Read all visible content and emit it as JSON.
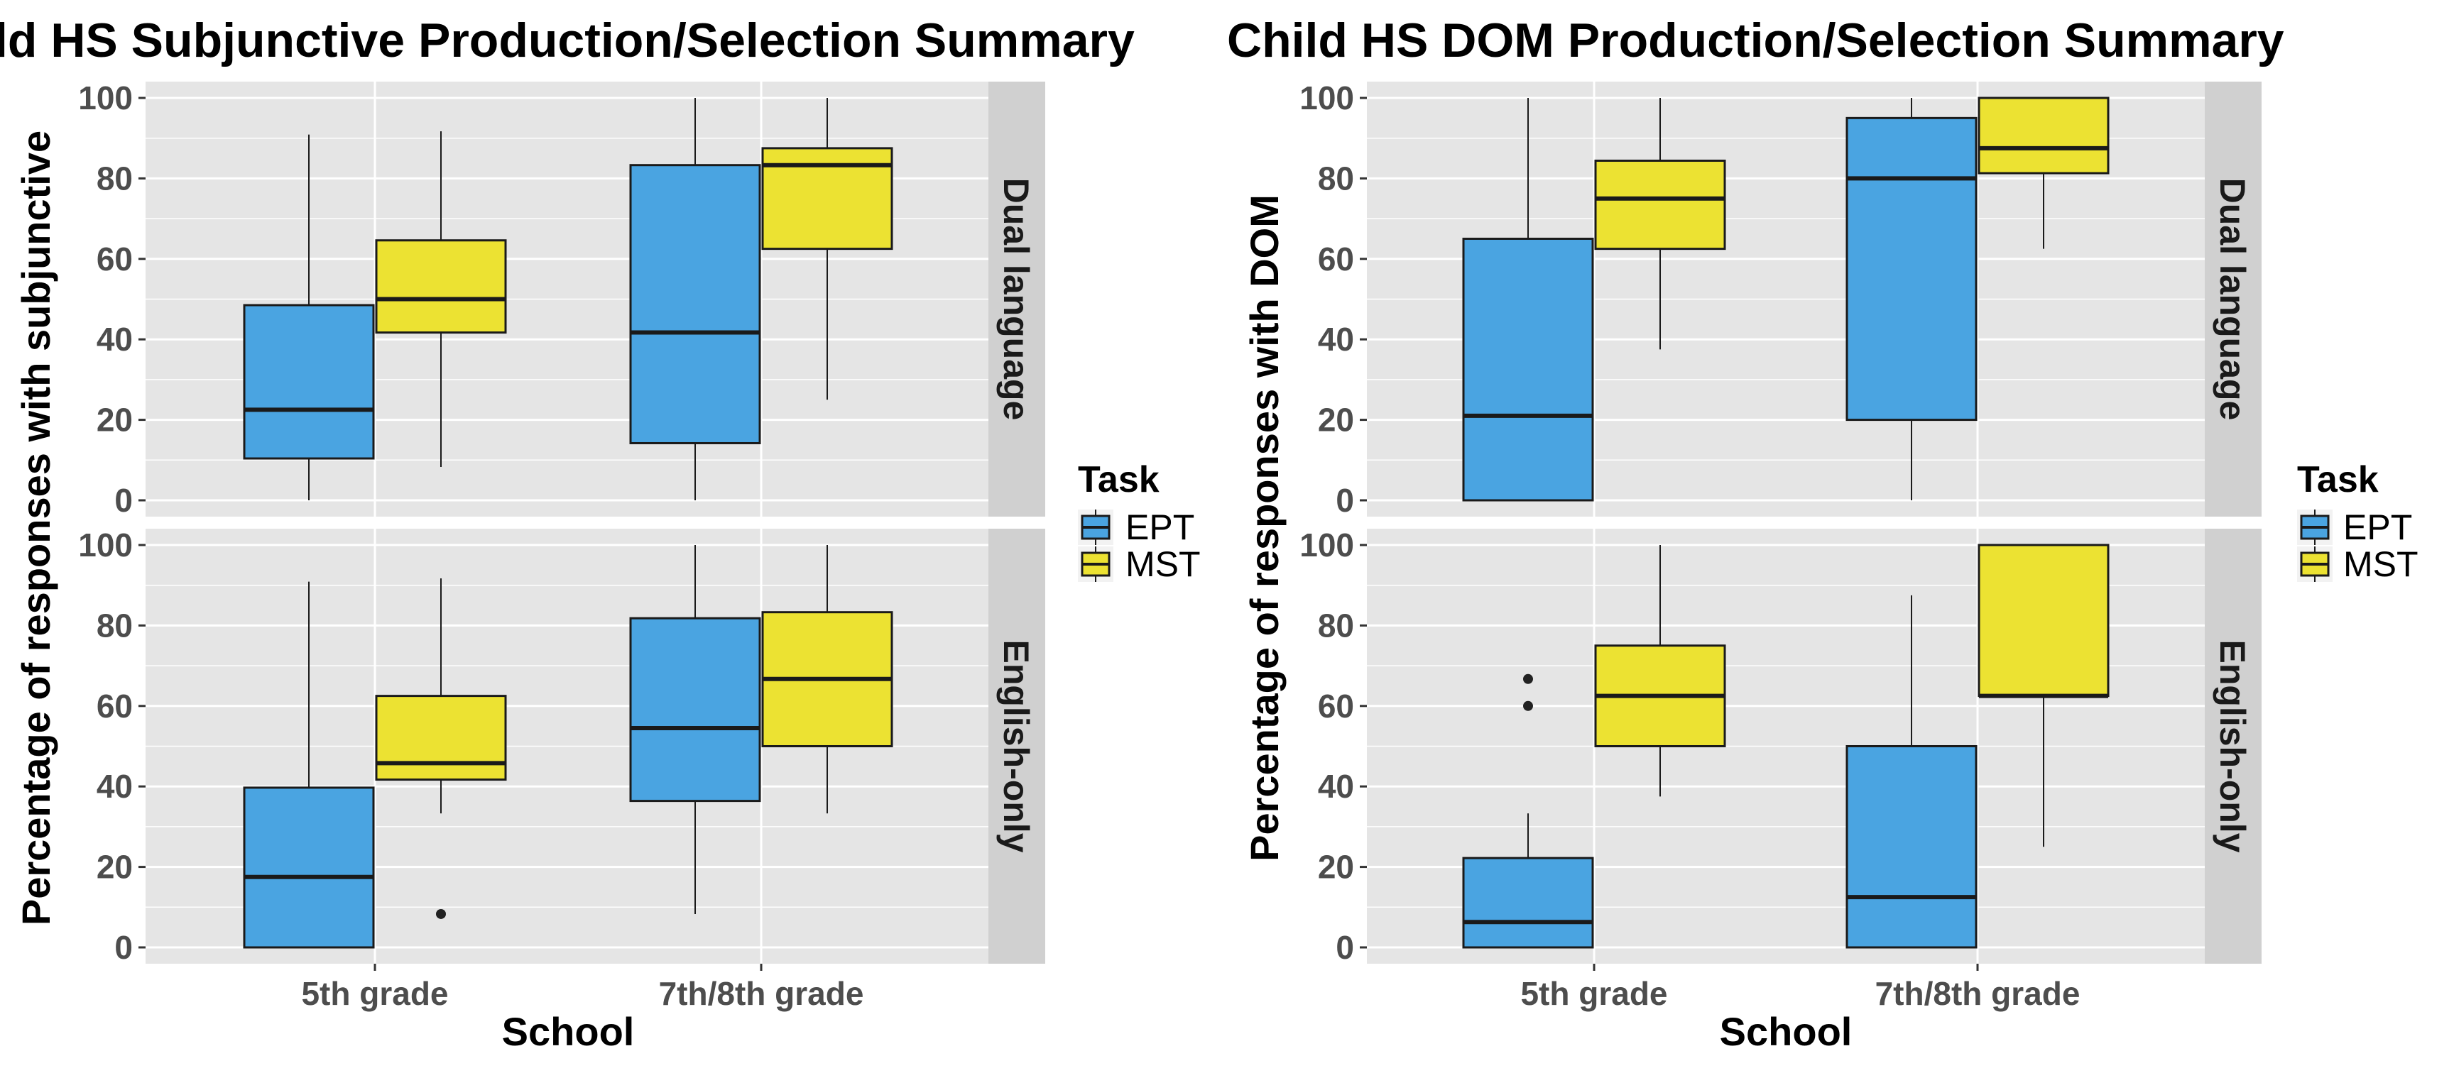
{
  "colors": {
    "EPT": "#4aa4e1",
    "MST": "#ece232",
    "panel_bg": "#e5e5e5",
    "strip_bg": "#d0d0d0",
    "grid": "#ffffff",
    "text": "#1a1a1a",
    "tick_text": "#4d4d4d"
  },
  "chart_data": [
    {
      "type": "boxplot",
      "title": "ld HS Subjunctive Production/Selection Summary",
      "xlabel": "School",
      "ylabel": "Percentage of responses  with subjunctive",
      "categories": [
        "5th grade",
        "7th/8th grade"
      ],
      "ylim": [
        0,
        100
      ],
      "yticks": [
        "0",
        "20",
        "40",
        "60",
        "80",
        "100"
      ],
      "grid": true,
      "legend": {
        "title": "Task",
        "entries": [
          "EPT",
          "MST"
        ],
        "position": "right"
      },
      "facets": [
        {
          "label": "Dual language",
          "boxes": [
            {
              "category": "5th grade",
              "task": "EPT",
              "min": 0,
              "q1": 10.4,
              "median": 22.5,
              "q3": 48.5,
              "max": 90.9,
              "outliers": []
            },
            {
              "category": "5th grade",
              "task": "MST",
              "min": 8.3,
              "q1": 41.7,
              "median": 50,
              "q3": 64.6,
              "max": 91.7,
              "outliers": []
            },
            {
              "category": "7th/8th grade",
              "task": "EPT",
              "min": 0,
              "q1": 14.2,
              "median": 41.7,
              "q3": 83.3,
              "max": 100,
              "outliers": []
            },
            {
              "category": "7th/8th grade",
              "task": "MST",
              "min": 25,
              "q1": 62.5,
              "median": 83.3,
              "q3": 87.5,
              "max": 100,
              "outliers": []
            }
          ]
        },
        {
          "label": "English-only",
          "boxes": [
            {
              "category": "5th grade",
              "task": "EPT",
              "min": 0,
              "q1": 0,
              "median": 17.5,
              "q3": 39.7,
              "max": 90.9,
              "outliers": []
            },
            {
              "category": "5th grade",
              "task": "MST",
              "min": 33.3,
              "q1": 41.7,
              "median": 45.8,
              "q3": 62.5,
              "max": 91.7,
              "outliers": [
                8.3
              ]
            },
            {
              "category": "7th/8th grade",
              "task": "EPT",
              "min": 8.3,
              "q1": 36.4,
              "median": 54.5,
              "q3": 81.8,
              "max": 100,
              "outliers": []
            },
            {
              "category": "7th/8th grade",
              "task": "MST",
              "min": 33.3,
              "q1": 50,
              "median": 66.7,
              "q3": 83.3,
              "max": 100,
              "outliers": []
            }
          ]
        }
      ]
    },
    {
      "type": "boxplot",
      "title": "Child HS DOM Production/Selection Summary",
      "xlabel": "School",
      "ylabel": "Percentage of responses with DOM",
      "categories": [
        "5th grade",
        "7th/8th grade"
      ],
      "ylim": [
        0,
        100
      ],
      "yticks": [
        "0",
        "20",
        "40",
        "60",
        "80",
        "100"
      ],
      "grid": true,
      "legend": {
        "title": "Task",
        "entries": [
          "EPT",
          "MST"
        ],
        "position": "right"
      },
      "facets": [
        {
          "label": "Dual language",
          "boxes": [
            {
              "category": "5th grade",
              "task": "EPT",
              "min": 0,
              "q1": 0,
              "median": 21,
              "q3": 65,
              "max": 100,
              "outliers": []
            },
            {
              "category": "5th grade",
              "task": "MST",
              "min": 37.5,
              "q1": 62.5,
              "median": 75,
              "q3": 84.4,
              "max": 100,
              "outliers": []
            },
            {
              "category": "7th/8th grade",
              "task": "EPT",
              "min": 0,
              "q1": 20,
              "median": 80,
              "q3": 95,
              "max": 100,
              "outliers": []
            },
            {
              "category": "7th/8th grade",
              "task": "MST",
              "min": 62.5,
              "q1": 81.3,
              "median": 87.5,
              "q3": 100,
              "max": 100,
              "outliers": []
            }
          ]
        },
        {
          "label": "English-only",
          "boxes": [
            {
              "category": "5th grade",
              "task": "EPT",
              "min": 0,
              "q1": 0,
              "median": 6.3,
              "q3": 22.2,
              "max": 33.3,
              "outliers": [
                60,
                66.7
              ]
            },
            {
              "category": "5th grade",
              "task": "MST",
              "min": 37.5,
              "q1": 50,
              "median": 62.5,
              "q3": 75,
              "max": 100,
              "outliers": []
            },
            {
              "category": "7th/8th grade",
              "task": "EPT",
              "min": 0,
              "q1": 0,
              "median": 12.5,
              "q3": 50,
              "max": 87.5,
              "outliers": []
            },
            {
              "category": "7th/8th grade",
              "task": "MST",
              "min": 25,
              "q1": 62.5,
              "median": 62.5,
              "q3": 100,
              "max": 100,
              "outliers": []
            }
          ]
        }
      ]
    }
  ]
}
